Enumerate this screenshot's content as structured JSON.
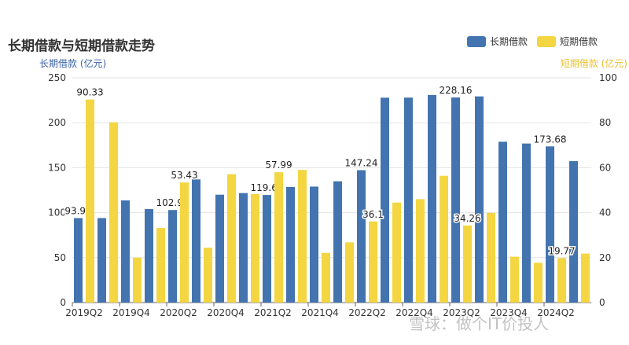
{
  "chart_data": {
    "type": "bar",
    "title": "长期借款与短期借款走势",
    "y_left_label": "长期借款 (亿元)",
    "y_right_label": "短期借款 (亿元)",
    "y_left_lim": [
      0,
      250
    ],
    "y_right_lim": [
      0,
      100
    ],
    "y_left_ticks": [
      0,
      50,
      100,
      150,
      200,
      250
    ],
    "y_right_ticks": [
      0,
      20,
      40,
      60,
      80,
      100
    ],
    "grid": true,
    "legend_position": "top-right",
    "categories": [
      "2019Q2",
      "2019Q3",
      "2019Q4",
      "2020Q1",
      "2020Q2",
      "2020Q3",
      "2020Q4",
      "2021Q1",
      "2021Q2",
      "2021Q3",
      "2021Q4",
      "2022Q1",
      "2022Q2",
      "2022Q3",
      "2022Q4",
      "2023Q1",
      "2023Q2",
      "2023Q3",
      "2023Q4",
      "2024Q1",
      "2024Q2",
      "2024Q3"
    ],
    "tick_labels": [
      "2019Q2",
      "",
      "2019Q4",
      "",
      "2020Q2",
      "",
      "2020Q4",
      "",
      "2021Q2",
      "",
      "2021Q4",
      "",
      "2022Q2",
      "",
      "2022Q4",
      "",
      "2023Q2",
      "",
      "2023Q4",
      "",
      "2024Q2",
      ""
    ],
    "series": [
      {
        "name": "长期借款",
        "axis": "left",
        "color": "#4374b0",
        "values": [
          93.92,
          94,
          113.6,
          104,
          102.94,
          137,
          120,
          121.8,
          119.66,
          128.5,
          129,
          134.9,
          147.24,
          227.9,
          228,
          230.8,
          228.16,
          229.3,
          178.9,
          176.9,
          173.68,
          157.3
        ],
        "labels": [
          "93.92",
          "",
          "",
          "",
          "102.94",
          "",
          "",
          "",
          "119.66",
          "",
          "",
          "",
          "147.24",
          "",
          "",
          "",
          "228.16",
          "",
          "",
          "",
          "173.68",
          ""
        ]
      },
      {
        "name": "短期借款",
        "axis": "right",
        "color": "#f3d641",
        "values": [
          90.33,
          80.2,
          20,
          33.2,
          53.43,
          24.4,
          57.1,
          48.3,
          57.99,
          59,
          22.1,
          26.8,
          36.1,
          44.5,
          46,
          56.4,
          34.26,
          39.9,
          20.4,
          17.7,
          19.77,
          21.8
        ],
        "labels": [
          "90.33",
          "",
          "",
          "",
          "53.43",
          "",
          "",
          "",
          "57.99",
          "",
          "",
          "",
          "36.1",
          "",
          "",
          "",
          "34.26",
          "",
          "",
          "",
          "19.77",
          ""
        ]
      }
    ]
  },
  "watermark": "雪球：做个IT价投人"
}
